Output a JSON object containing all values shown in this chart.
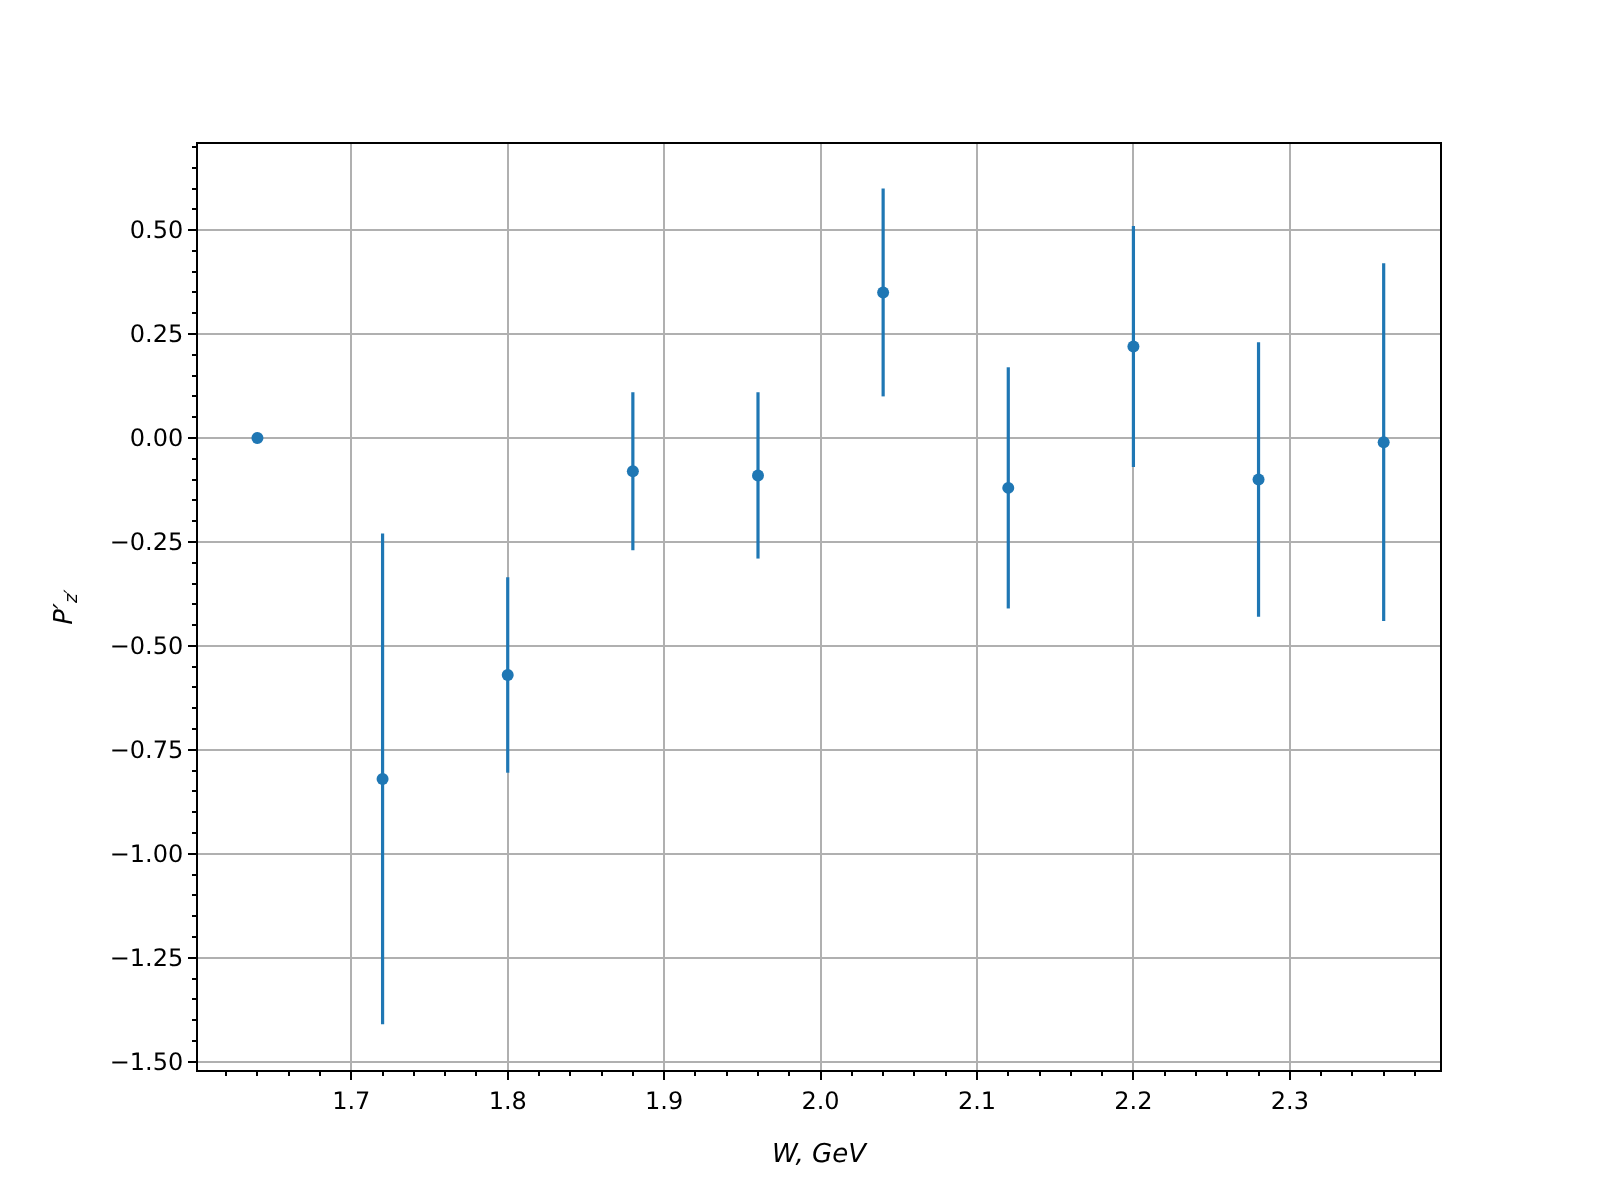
{
  "chart_data": {
    "type": "scatter",
    "xlabel": "W, GeV",
    "ylabel": "P′$_{z′}$",
    "x": [
      1.64,
      1.72,
      1.8,
      1.88,
      1.96,
      2.04,
      2.12,
      2.2,
      2.28,
      2.36
    ],
    "series": [
      {
        "color": "#1f77b4",
        "values": [
          0.0,
          -0.82,
          -0.57,
          -0.08,
          -0.09,
          0.35,
          -0.12,
          0.22,
          -0.1,
          -0.01
        ],
        "errors": [
          null,
          0.59,
          0.235,
          0.19,
          0.2,
          0.25,
          0.29,
          0.29,
          0.33,
          0.43
        ]
      }
    ],
    "xlim": [
      1.602,
      2.396
    ],
    "ylim": [
      -1.52,
      0.707
    ],
    "xticks": [
      {
        "value": 1.7,
        "label": "1.7"
      },
      {
        "value": 1.8,
        "label": "1.8"
      },
      {
        "value": 1.9,
        "label": "1.9"
      },
      {
        "value": 2.0,
        "label": "2.0"
      },
      {
        "value": 2.1,
        "label": "2.1"
      },
      {
        "value": 2.2,
        "label": "2.2"
      },
      {
        "value": 2.3,
        "label": "2.3"
      }
    ],
    "yticks": [
      {
        "value": -1.5,
        "label": "−1.50"
      },
      {
        "value": -1.25,
        "label": "−1.25"
      },
      {
        "value": -1.0,
        "label": "−1.00"
      },
      {
        "value": -0.75,
        "label": "−0.75"
      },
      {
        "value": -0.5,
        "label": "−0.50"
      },
      {
        "value": -0.25,
        "label": "−0.25"
      },
      {
        "value": 0.0,
        "label": "0.00"
      },
      {
        "value": 0.25,
        "label": "0.25"
      },
      {
        "value": 0.5,
        "label": "0.50"
      }
    ],
    "grid": true,
    "marker": "circle"
  }
}
